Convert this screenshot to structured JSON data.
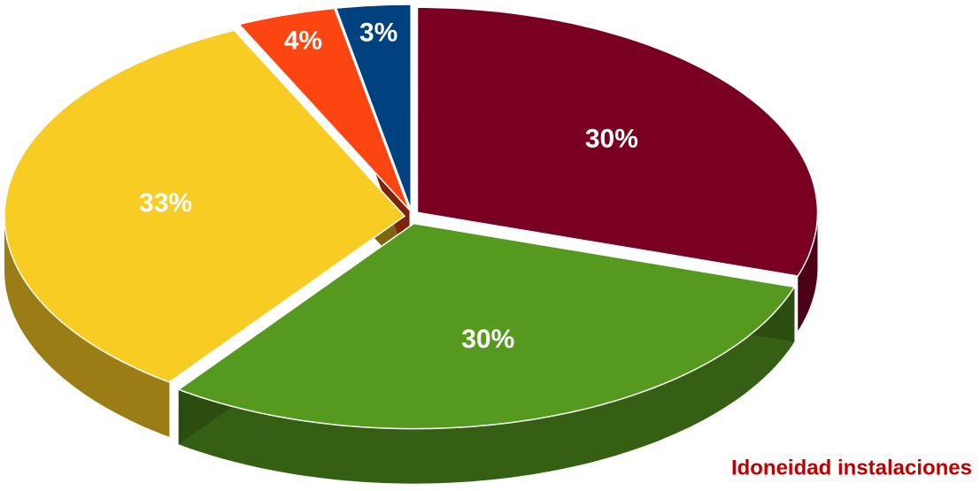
{
  "chart_data": {
    "type": "pie",
    "title": "Idoneidad instalaciones",
    "values": [
      30,
      30,
      33,
      4,
      3
    ],
    "value_labels": [
      "30%",
      "30%",
      "33%",
      "4%",
      "3%"
    ],
    "colors": [
      "#7a0022",
      "#559a1e",
      "#f8cc22",
      "#fc4510",
      "#00417f"
    ]
  }
}
